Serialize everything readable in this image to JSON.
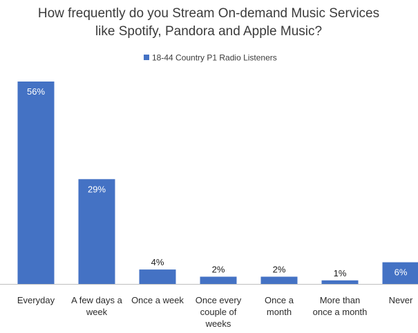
{
  "chart_data": {
    "type": "bar",
    "title_lines": [
      "How frequently do you Stream On-demand Music Services",
      "like Spotify, Pandora and Apple Music?"
    ],
    "legend": {
      "position": "top",
      "label": "18-44 Country P1 Radio Listeners"
    },
    "categories": [
      [
        "Everyday"
      ],
      [
        "A few days a",
        "week"
      ],
      [
        "Once a week"
      ],
      [
        "Once every",
        "couple of",
        "weeks"
      ],
      [
        "Once a",
        "month"
      ],
      [
        "More than",
        "once a month"
      ],
      [
        "Never"
      ]
    ],
    "series": [
      {
        "name": "18-44 Country P1 Radio Listeners",
        "values": [
          56,
          29,
          4,
          2,
          2,
          1,
          6
        ],
        "labels": [
          "56%",
          "29%",
          "4%",
          "2%",
          "2%",
          "1%",
          "6%"
        ],
        "color": "#4472c4"
      }
    ],
    "ylim": [
      0,
      56
    ],
    "grid": false,
    "label_color_inside": "#ffffff",
    "label_color_outside": "#1a1a1a",
    "axis_color": "#bfbfbf"
  }
}
